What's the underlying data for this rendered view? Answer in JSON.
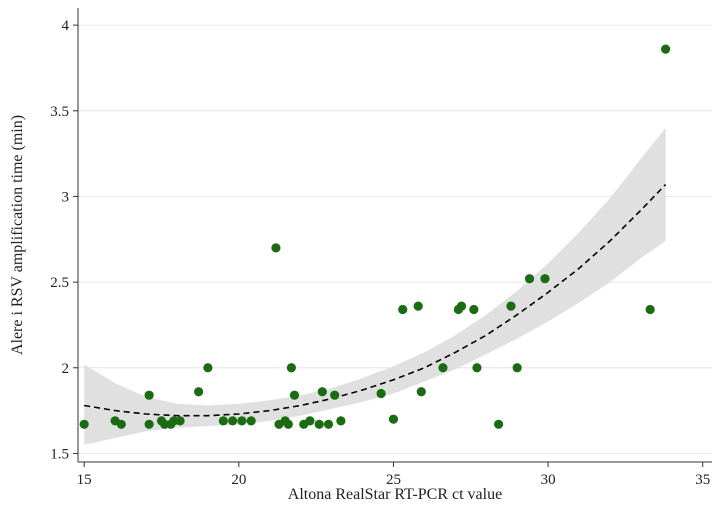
{
  "chart_data": {
    "type": "scatter",
    "xlabel": "Altona RealStar RT-PCR ct value",
    "ylabel": "Alere i RSV amplification time (min)",
    "xlim": [
      14.8,
      35.3
    ],
    "ylim": [
      1.45,
      4.1
    ],
    "xticks": [
      15,
      20,
      25,
      30,
      35
    ],
    "yticks": [
      1.5,
      2,
      2.5,
      3,
      3.5,
      4
    ],
    "xtick_labels": [
      "15",
      "20",
      "25",
      "30",
      "35"
    ],
    "ytick_labels": [
      "1.5",
      "2",
      "2.5",
      "3",
      "3.5",
      "4"
    ],
    "grid": "horizontal",
    "legend": "none",
    "colors": {
      "points": "#1a6b12",
      "fit": "#000000",
      "band": "#e0e0e0"
    },
    "points": [
      {
        "x": 15.0,
        "y": 1.67
      },
      {
        "x": 16.0,
        "y": 1.69
      },
      {
        "x": 16.2,
        "y": 1.67
      },
      {
        "x": 17.1,
        "y": 1.84
      },
      {
        "x": 17.1,
        "y": 1.67
      },
      {
        "x": 17.5,
        "y": 1.69
      },
      {
        "x": 17.6,
        "y": 1.67
      },
      {
        "x": 17.9,
        "y": 1.69
      },
      {
        "x": 17.8,
        "y": 1.67
      },
      {
        "x": 18.1,
        "y": 1.69
      },
      {
        "x": 18.7,
        "y": 1.86
      },
      {
        "x": 19.0,
        "y": 2.0
      },
      {
        "x": 19.5,
        "y": 1.69
      },
      {
        "x": 19.8,
        "y": 1.69
      },
      {
        "x": 20.1,
        "y": 1.69
      },
      {
        "x": 20.4,
        "y": 1.69
      },
      {
        "x": 21.2,
        "y": 2.7
      },
      {
        "x": 21.3,
        "y": 1.67
      },
      {
        "x": 21.5,
        "y": 1.69
      },
      {
        "x": 21.6,
        "y": 1.67
      },
      {
        "x": 21.7,
        "y": 2.0
      },
      {
        "x": 21.8,
        "y": 1.84
      },
      {
        "x": 22.1,
        "y": 1.67
      },
      {
        "x": 22.3,
        "y": 1.69
      },
      {
        "x": 22.6,
        "y": 1.67
      },
      {
        "x": 22.7,
        "y": 1.86
      },
      {
        "x": 22.9,
        "y": 1.67
      },
      {
        "x": 23.1,
        "y": 1.84
      },
      {
        "x": 23.3,
        "y": 1.69
      },
      {
        "x": 24.6,
        "y": 1.85
      },
      {
        "x": 25.0,
        "y": 1.7
      },
      {
        "x": 25.3,
        "y": 2.34
      },
      {
        "x": 25.8,
        "y": 2.36
      },
      {
        "x": 25.9,
        "y": 1.86
      },
      {
        "x": 26.6,
        "y": 2.0
      },
      {
        "x": 27.1,
        "y": 2.34
      },
      {
        "x": 27.2,
        "y": 2.36
      },
      {
        "x": 27.6,
        "y": 2.34
      },
      {
        "x": 27.7,
        "y": 2.0
      },
      {
        "x": 28.4,
        "y": 1.67
      },
      {
        "x": 28.8,
        "y": 2.36
      },
      {
        "x": 29.0,
        "y": 2.0
      },
      {
        "x": 29.4,
        "y": 2.52
      },
      {
        "x": 29.9,
        "y": 2.52
      },
      {
        "x": 33.3,
        "y": 2.34
      },
      {
        "x": 33.8,
        "y": 3.86
      }
    ],
    "fit": {
      "style": "dashed",
      "x": [
        15,
        16,
        17,
        18,
        19,
        20,
        21,
        22,
        23,
        24,
        25,
        26,
        27,
        28,
        29,
        30,
        31,
        32,
        33,
        33.8
      ],
      "y": [
        1.78,
        1.75,
        1.73,
        1.72,
        1.72,
        1.73,
        1.75,
        1.78,
        1.82,
        1.87,
        1.93,
        2.0,
        2.09,
        2.19,
        2.31,
        2.44,
        2.58,
        2.74,
        2.92,
        3.07
      ],
      "band_lower": [
        1.55,
        1.59,
        1.63,
        1.65,
        1.66,
        1.67,
        1.69,
        1.72,
        1.76,
        1.8,
        1.85,
        1.92,
        1.99,
        2.08,
        2.17,
        2.27,
        2.38,
        2.5,
        2.64,
        2.74
      ],
      "band_upper": [
        2.02,
        1.91,
        1.83,
        1.79,
        1.78,
        1.79,
        1.81,
        1.84,
        1.88,
        1.94,
        2.01,
        2.09,
        2.19,
        2.31,
        2.45,
        2.61,
        2.79,
        2.99,
        3.22,
        3.4
      ]
    }
  }
}
